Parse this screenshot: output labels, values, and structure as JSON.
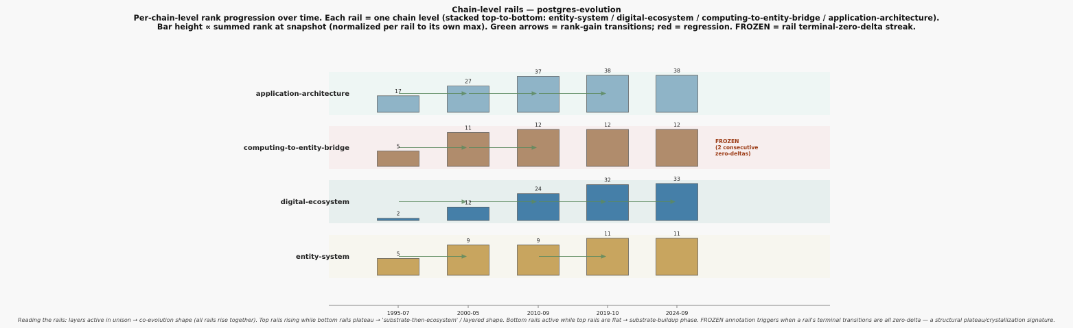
{
  "title": "Chain-level rails — postgres-evolution",
  "subtitle_lines": [
    "Per-chain-level rank progression over time. Each rail = one chain level (stacked top-to-bottom: entity-system / digital-ecosystem / computing-to-entity-bridge / application-architecture).",
    "Bar height ∝ summed rank at snapshot (normalized per rail to its own max). Green arrows = rank-gain transitions; red = regression. FROZEN = rail terminal-zero-delta streak."
  ],
  "footnote": "Reading the rails: layers active in unison → co-evolution shape (all rails rise together).  Top rails rising while bottom rails plateau → 'substrate-then-ecosystem' / layered shape.  Bottom rails active while top rails are flat → substrate-buildup phase. FROZEN annotation triggers when a rail's terminal transitions are all zero-delta — a structural plateau/crystallization signature.",
  "chart_data": {
    "type": "bar",
    "categories": [
      "1995-07",
      "2000-05",
      "2010-09",
      "2019-10",
      "2024-09"
    ],
    "series": [
      {
        "name": "application-architecture",
        "values": [
          17,
          27,
          37,
          38,
          38
        ],
        "color": "#8fb4c7",
        "band": "#eef6f4",
        "arrows": [
          [
            0,
            1
          ],
          [
            1,
            2
          ],
          [
            2,
            3
          ]
        ],
        "frozen": null
      },
      {
        "name": "computing-to-entity-bridge",
        "values": [
          5,
          11,
          12,
          12,
          12
        ],
        "color": "#b08c6c",
        "band": "#f7eeee",
        "arrows": [
          [
            0,
            1
          ],
          [
            1,
            2
          ]
        ],
        "frozen": [
          "FROZEN",
          "(2 consecutive",
          "zero-deltas)"
        ]
      },
      {
        "name": "digital-ecosystem",
        "values": [
          2,
          12,
          24,
          32,
          33
        ],
        "color": "#457fa8",
        "band": "#e7efee",
        "arrows": [
          [
            0,
            1
          ],
          [
            1,
            2
          ],
          [
            2,
            3
          ],
          [
            3,
            4
          ]
        ],
        "frozen": null
      },
      {
        "name": "entity-system",
        "values": [
          5,
          9,
          9,
          11,
          11
        ],
        "color": "#c8a55f",
        "band": "#f7f6ef",
        "arrows": [
          [
            0,
            1
          ],
          [
            2,
            3
          ]
        ],
        "frozen": null
      }
    ],
    "arrow_color": "#5d8a5f",
    "normalization": "per rail to its own max",
    "legend": "none",
    "grid": false
  }
}
